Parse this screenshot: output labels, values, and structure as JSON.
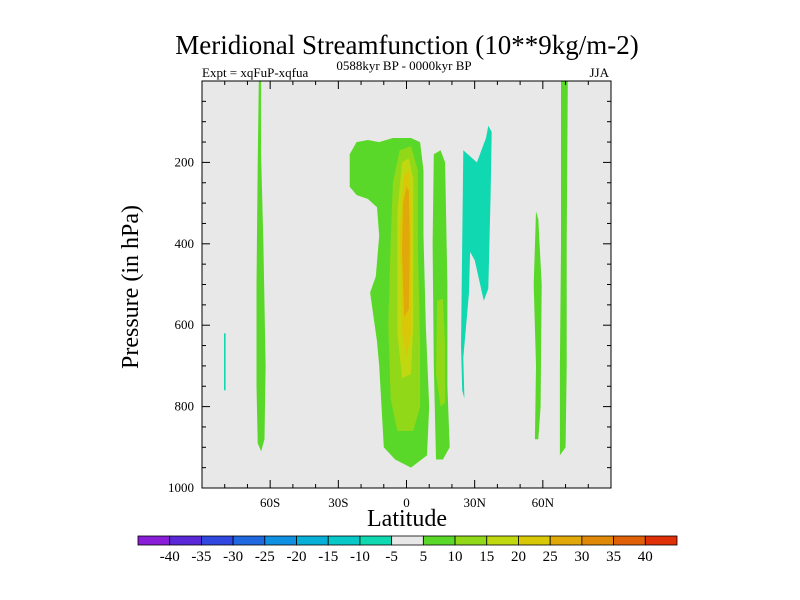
{
  "chart_data": {
    "type": "heatmap",
    "title": "Meridional Streamfunction (10**9kg/m-2)",
    "subtitle_left": "Expt = xqFuP-xqfua",
    "subtitle_center": "0588kyr BP - 0000kyr BP",
    "subtitle_right": "JJA",
    "xlabel": "Latitude",
    "ylabel": "Pressure (in hPa)",
    "xlim": [
      -90,
      90
    ],
    "ylim": [
      1000,
      0
    ],
    "x_ticks": [
      {
        "value": -60,
        "label": "60S"
      },
      {
        "value": -30,
        "label": "30S"
      },
      {
        "value": 0,
        "label": "0"
      },
      {
        "value": 30,
        "label": "30N"
      },
      {
        "value": 60,
        "label": "60N"
      }
    ],
    "y_ticks": [
      {
        "value": 200,
        "label": "200"
      },
      {
        "value": 400,
        "label": "400"
      },
      {
        "value": 600,
        "label": "600"
      },
      {
        "value": 800,
        "label": "800"
      },
      {
        "value": 1000,
        "label": "1000"
      }
    ],
    "colorbar": {
      "labels": [
        "-40",
        "-35",
        "-30",
        "-25",
        "-20",
        "-15",
        "-10",
        "-5",
        "5",
        "10",
        "15",
        "20",
        "25",
        "30",
        "35",
        "40"
      ],
      "colors": [
        "#8a1ed8",
        "#5a28d8",
        "#3048e0",
        "#2068e0",
        "#1090e0",
        "#08b0d8",
        "#08c8c8",
        "#10d8b0",
        "#e8e8e8",
        "#5ad82a",
        "#90d818",
        "#c0d810",
        "#d8c808",
        "#e0a808",
        "#e08808",
        "#e06008",
        "#e03008"
      ]
    },
    "regions": [
      {
        "level": "5",
        "polygon": [
          [
            -65,
            1
          ],
          [
            -64,
            1
          ],
          [
            -64,
            180
          ],
          [
            -63,
            400
          ],
          [
            -62,
            700
          ],
          [
            -62.5,
            880
          ],
          [
            -64,
            910
          ],
          [
            -65.5,
            890
          ],
          [
            -66,
            750
          ],
          [
            -66,
            500
          ],
          [
            -65.5,
            200
          ]
        ]
      },
      {
        "level": "-5",
        "polygon": [
          [
            -80.3,
            620
          ],
          [
            -79.6,
            620
          ],
          [
            -79.6,
            760
          ],
          [
            -80.3,
            760
          ]
        ]
      },
      {
        "level": "5",
        "polygon": [
          [
            -25,
            180
          ],
          [
            -22,
            150
          ],
          [
            -17,
            145
          ],
          [
            -12,
            150
          ],
          [
            -6,
            140
          ],
          [
            2,
            140
          ],
          [
            6,
            150
          ],
          [
            7.5,
            220
          ],
          [
            7.5,
            380
          ],
          [
            8.5,
            600
          ],
          [
            10,
            800
          ],
          [
            9,
            920
          ],
          [
            2,
            950
          ],
          [
            -5,
            930
          ],
          [
            -10,
            900
          ],
          [
            -11,
            800
          ],
          [
            -12,
            700
          ],
          [
            -13,
            640
          ],
          [
            -15,
            560
          ],
          [
            -16,
            520
          ],
          [
            -13.5,
            480
          ],
          [
            -12,
            380
          ],
          [
            -13,
            310
          ],
          [
            -17,
            290
          ],
          [
            -22,
            280
          ],
          [
            -25,
            260
          ]
        ]
      },
      {
        "level": "10",
        "polygon": [
          [
            -3,
            170
          ],
          [
            2,
            160
          ],
          [
            5,
            220
          ],
          [
            5,
            420
          ],
          [
            6,
            650
          ],
          [
            6,
            800
          ],
          [
            3,
            860
          ],
          [
            -4,
            860
          ],
          [
            -7,
            780
          ],
          [
            -8,
            600
          ],
          [
            -7,
            400
          ],
          [
            -6,
            250
          ]
        ]
      },
      {
        "level": "15",
        "polygon": [
          [
            -2,
            200
          ],
          [
            1,
            190
          ],
          [
            3,
            240
          ],
          [
            3,
            600
          ],
          [
            2,
            720
          ],
          [
            -2,
            730
          ],
          [
            -4,
            620
          ],
          [
            -4,
            320
          ]
        ]
      },
      {
        "level": "20",
        "polygon": [
          [
            -1,
            230
          ],
          [
            1,
            220
          ],
          [
            2,
            300
          ],
          [
            2,
            620
          ],
          [
            0,
            680
          ],
          [
            -2,
            620
          ],
          [
            -3,
            360
          ]
        ]
      },
      {
        "level": "25",
        "polygon": [
          [
            0,
            260
          ],
          [
            1,
            270
          ],
          [
            1.5,
            400
          ],
          [
            1,
            560
          ],
          [
            -1,
            580
          ],
          [
            -2,
            420
          ],
          [
            -1.5,
            300
          ]
        ]
      },
      {
        "level": "5",
        "polygon": [
          [
            12,
            180
          ],
          [
            15,
            170
          ],
          [
            17,
            200
          ],
          [
            18,
            500
          ],
          [
            18,
            750
          ],
          [
            19,
            900
          ],
          [
            16,
            930
          ],
          [
            13,
            930
          ],
          [
            12,
            700
          ],
          [
            11.5,
            400
          ]
        ]
      },
      {
        "level": "10",
        "polygon": [
          [
            13.5,
            540
          ],
          [
            16,
            535
          ],
          [
            17,
            650
          ],
          [
            17,
            790
          ],
          [
            15,
            800
          ],
          [
            13,
            720
          ]
        ]
      },
      {
        "level": "-5",
        "polygon": [
          [
            25,
            170
          ],
          [
            31,
            200
          ],
          [
            35,
            140
          ],
          [
            36,
            110
          ],
          [
            37.5,
            125
          ],
          [
            37,
            280
          ],
          [
            36,
            510
          ],
          [
            34,
            540
          ],
          [
            30,
            440
          ],
          [
            28,
            420
          ],
          [
            27.5,
            520
          ],
          [
            25,
            680
          ],
          [
            25.5,
            780
          ],
          [
            24.5,
            760
          ],
          [
            24,
            650
          ]
        ]
      },
      {
        "level": "5",
        "polygon": [
          [
            57,
            320
          ],
          [
            58,
            340
          ],
          [
            59.5,
            500
          ],
          [
            59,
            800
          ],
          [
            58,
            880
          ],
          [
            56.5,
            880
          ],
          [
            57,
            700
          ],
          [
            56,
            500
          ]
        ]
      },
      {
        "level": "5",
        "polygon": [
          [
            68,
            1
          ],
          [
            71,
            1
          ],
          [
            70.5,
            400
          ],
          [
            70.5,
            700
          ],
          [
            70,
            900
          ],
          [
            67.5,
            920
          ],
          [
            67.5,
            700
          ],
          [
            68,
            400
          ]
        ]
      }
    ]
  }
}
